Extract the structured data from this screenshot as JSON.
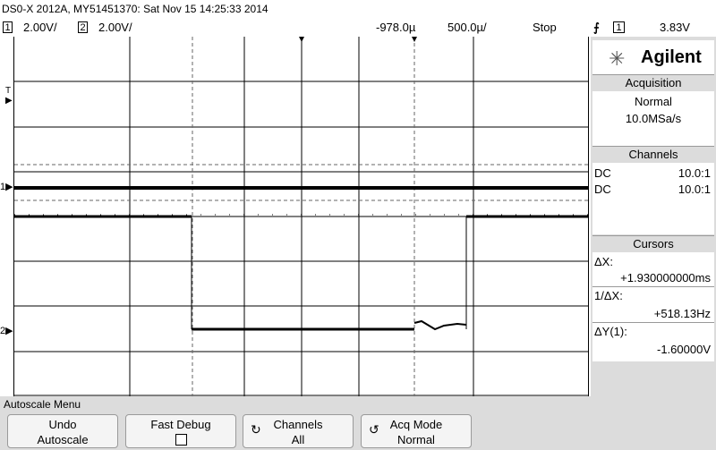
{
  "title": "DS0-X 2012A, MY51451370: Sat Nov 15 14:25:33 2014",
  "status": {
    "ch1_num": "1",
    "ch1_scale": "2.00V/",
    "ch2_num": "2",
    "ch2_scale": "2.00V/",
    "time_offset": "-978.0µ",
    "time_scale": "500.0µ/",
    "run_state": "Stop",
    "trigger_icon": "trigger-edge-icon",
    "trigger_source": "1",
    "trigger_level": "3.83V"
  },
  "markers": {
    "trigger_level": "T",
    "ch1": "1",
    "ch2": "2"
  },
  "panel": {
    "logo": "Agilent",
    "acquisition": {
      "title": "Acquisition",
      "mode": "Normal",
      "rate": "10.0MSa/s"
    },
    "channels": {
      "title": "Channels",
      "rows": [
        {
          "coupling": "DC",
          "probe": "10.0:1"
        },
        {
          "coupling": "DC",
          "probe": "10.0:1"
        }
      ]
    },
    "cursors": {
      "title": "Cursors",
      "dx_label": "ΔX:",
      "dx_value": "+1.930000000ms",
      "inv_label": "1/ΔX:",
      "inv_value": "+518.13Hz",
      "dy_label": "ΔY(1):",
      "dy_value": "-1.60000V"
    }
  },
  "menu": {
    "title": "Autoscale Menu",
    "buttons": [
      {
        "line1": "Undo",
        "line2": "Autoscale"
      },
      {
        "line1": "Fast Debug",
        "line2": ""
      },
      {
        "line1": "Channels",
        "line2": "All"
      },
      {
        "line1": "Acq Mode",
        "line2": "Normal"
      }
    ]
  },
  "colors": {
    "panel_bg": "#dcdcdc",
    "trace": "#000000",
    "grid": "#000000"
  }
}
